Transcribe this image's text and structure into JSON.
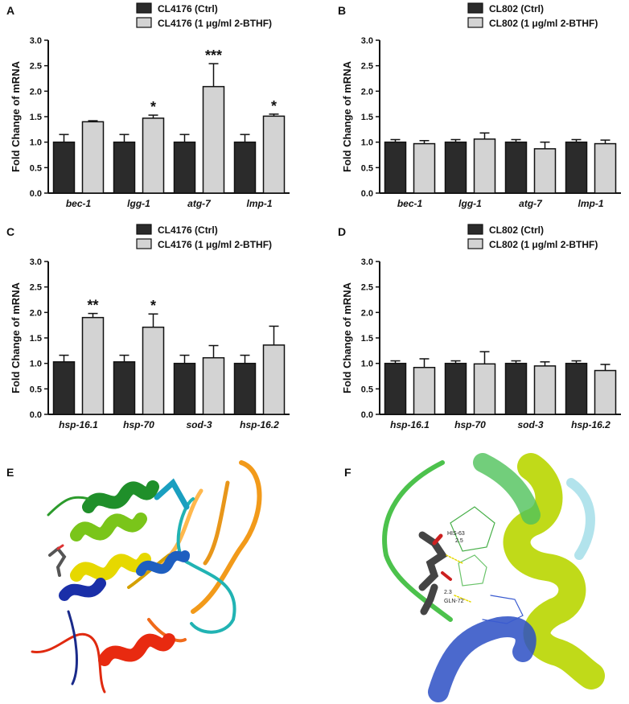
{
  "chart_data": [
    {
      "panel": "A",
      "type": "bar",
      "ylabel": "Fold Change of mRNA",
      "ylim": [
        0,
        3.0
      ],
      "yticks": [
        "0.0",
        "0.5",
        "1.0",
        "1.5",
        "2.0",
        "2.5",
        "3.0"
      ],
      "categories": [
        "bec-1",
        "lgg-1",
        "atg-7",
        "lmp-1"
      ],
      "series": [
        {
          "name": "CL4176 (Ctrl)",
          "color": "#2b2b2b",
          "values": [
            1.0,
            1.0,
            1.0,
            1.0
          ],
          "errors": [
            0.15,
            0.15,
            0.15,
            0.15
          ]
        },
        {
          "name": "CL4176 (1 μg/ml 2-BTHF)",
          "color": "#d3d3d3",
          "values": [
            1.4,
            1.47,
            2.09,
            1.51
          ],
          "errors": [
            0.02,
            0.06,
            0.45,
            0.04
          ]
        }
      ],
      "significance": [
        "",
        "*",
        "***",
        "*"
      ]
    },
    {
      "panel": "B",
      "type": "bar",
      "ylabel": "Fold Change of mRNA",
      "ylim": [
        0,
        3.0
      ],
      "yticks": [
        "0.0",
        "0.5",
        "1.0",
        "1.5",
        "2.0",
        "2.5",
        "3.0"
      ],
      "categories": [
        "bec-1",
        "lgg-1",
        "atg-7",
        "lmp-1"
      ],
      "series": [
        {
          "name": "CL802 (Ctrl)",
          "color": "#2b2b2b",
          "values": [
            1.0,
            1.0,
            1.0,
            1.0
          ],
          "errors": [
            0.05,
            0.05,
            0.05,
            0.05
          ]
        },
        {
          "name": "CL802 (1 μg/ml 2-BTHF)",
          "color": "#d3d3d3",
          "values": [
            0.97,
            1.06,
            0.87,
            0.97
          ],
          "errors": [
            0.06,
            0.12,
            0.13,
            0.07
          ]
        }
      ],
      "significance": [
        "",
        "",
        "",
        ""
      ]
    },
    {
      "panel": "C",
      "type": "bar",
      "ylabel": "Fold Change of mRNA",
      "ylim": [
        0,
        3.0
      ],
      "yticks": [
        "0.0",
        "0.5",
        "1.0",
        "1.5",
        "2.0",
        "2.5",
        "3.0"
      ],
      "categories": [
        "hsp-16.1",
        "hsp-70",
        "sod-3",
        "hsp-16.2"
      ],
      "series": [
        {
          "name": "CL4176 (Ctrl)",
          "color": "#2b2b2b",
          "values": [
            1.03,
            1.03,
            1.0,
            1.0
          ],
          "errors": [
            0.13,
            0.13,
            0.16,
            0.16
          ]
        },
        {
          "name": "CL4176 (1 μg/ml 2-BTHF)",
          "color": "#d3d3d3",
          "values": [
            1.9,
            1.71,
            1.11,
            1.36
          ],
          "errors": [
            0.08,
            0.26,
            0.24,
            0.37
          ]
        }
      ],
      "significance": [
        "**",
        "*",
        "",
        ""
      ]
    },
    {
      "panel": "D",
      "type": "bar",
      "ylabel": "Fold Change of mRNA",
      "ylim": [
        0,
        3.0
      ],
      "yticks": [
        "0.0",
        "0.5",
        "1.0",
        "1.5",
        "2.0",
        "2.5",
        "3.0"
      ],
      "categories": [
        "hsp-16.1",
        "hsp-70",
        "sod-3",
        "hsp-16.2"
      ],
      "series": [
        {
          "name": "CL802 (Ctrl)",
          "color": "#2b2b2b",
          "values": [
            1.0,
            1.0,
            1.0,
            1.0
          ],
          "errors": [
            0.05,
            0.05,
            0.05,
            0.05
          ]
        },
        {
          "name": "CL802 (1 μg/ml 2-BTHF)",
          "color": "#d3d3d3",
          "values": [
            0.92,
            0.99,
            0.95,
            0.86
          ],
          "errors": [
            0.17,
            0.24,
            0.08,
            0.12
          ]
        }
      ],
      "significance": [
        "",
        "",
        "",
        ""
      ]
    }
  ],
  "panels_images": {
    "e_letter": "E",
    "f_letter": "F",
    "f_labels": {
      "his": "HIS-63",
      "dist1": "2.5",
      "dist2": "2.3",
      "gln": "GLN-72"
    }
  }
}
